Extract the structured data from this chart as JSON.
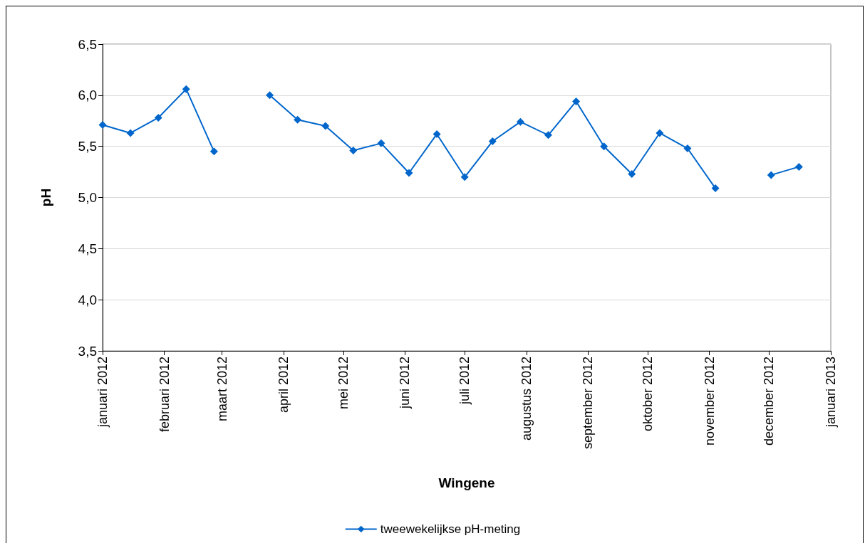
{
  "chart_data": {
    "type": "line",
    "xlabel": "Wingene",
    "ylabel": "pH",
    "x": [
      "2012-01-01",
      "2012-01-15",
      "2012-01-29",
      "2012-02-12",
      "2012-02-26",
      "2012-03-11",
      "2012-03-25",
      "2012-04-08",
      "2012-04-22",
      "2012-05-06",
      "2012-05-20",
      "2012-06-03",
      "2012-06-17",
      "2012-07-01",
      "2012-07-15",
      "2012-07-29",
      "2012-08-12",
      "2012-08-26",
      "2012-09-09",
      "2012-09-23",
      "2012-10-07",
      "2012-10-21",
      "2012-11-04",
      "2012-11-18",
      "2012-12-02",
      "2012-12-16"
    ],
    "series": [
      {
        "name": "tweewekelijkse pH-meting",
        "color": "#0066cc",
        "values": [
          5.71,
          5.63,
          5.78,
          6.06,
          5.45,
          null,
          6.0,
          5.76,
          5.7,
          5.46,
          5.53,
          5.24,
          5.62,
          5.2,
          5.55,
          5.74,
          5.61,
          5.94,
          5.5,
          5.23,
          5.63,
          5.48,
          5.09,
          null,
          5.22,
          5.3
        ]
      }
    ],
    "xlim": [
      "2012-01-01",
      "2013-01-01"
    ],
    "xticks": [
      {
        "value": "2012-01-01",
        "label": "januari 2012"
      },
      {
        "value": "2012-02-01",
        "label": "februari 2012"
      },
      {
        "value": "2012-03-01",
        "label": "maart 2012"
      },
      {
        "value": "2012-04-01",
        "label": "april 2012"
      },
      {
        "value": "2012-05-01",
        "label": "mei 2012"
      },
      {
        "value": "2012-06-01",
        "label": "juni 2012"
      },
      {
        "value": "2012-07-01",
        "label": "juli 2012"
      },
      {
        "value": "2012-08-01",
        "label": "augustus 2012"
      },
      {
        "value": "2012-09-01",
        "label": "september 2012"
      },
      {
        "value": "2012-10-01",
        "label": "oktober 2012"
      },
      {
        "value": "2012-11-01",
        "label": "november 2012"
      },
      {
        "value": "2012-12-01",
        "label": "december 2012"
      },
      {
        "value": "2013-01-01",
        "label": "januari 2013"
      }
    ],
    "ylim": [
      3.5,
      6.5
    ],
    "yticks": [
      {
        "value": 3.5,
        "label": "3,5"
      },
      {
        "value": 4.0,
        "label": "4,0"
      },
      {
        "value": 4.5,
        "label": "4,5"
      },
      {
        "value": 5.0,
        "label": "5,0"
      },
      {
        "value": 5.5,
        "label": "5,5"
      },
      {
        "value": 6.0,
        "label": "6,0"
      },
      {
        "value": 6.5,
        "label": "6,5"
      }
    ],
    "grid": "y",
    "legend": "bottom",
    "marker": "diamond",
    "line_style": "solid"
  }
}
